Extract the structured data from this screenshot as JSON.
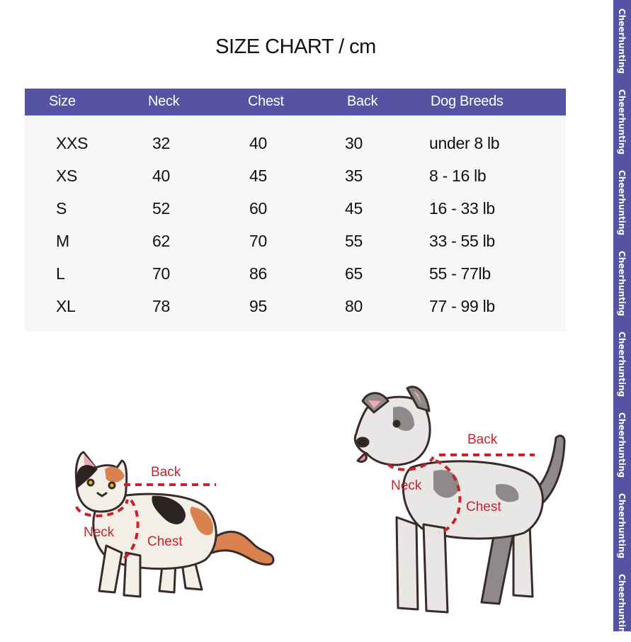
{
  "title": "SIZE CHART / cm",
  "table": {
    "headers": [
      "Size",
      "Neck",
      "Chest",
      "Back",
      "Dog Breeds"
    ],
    "rows": [
      [
        "XXS",
        "32",
        "40",
        "30",
        "under 8 lb"
      ],
      [
        "XS",
        "40",
        "45",
        "35",
        "8 - 16 lb"
      ],
      [
        "S",
        "52",
        "60",
        "45",
        "16 - 33 lb"
      ],
      [
        "M",
        "62",
        "70",
        "55",
        "33 - 55 lb"
      ],
      [
        "L",
        "70",
        "86",
        "65",
        "55 - 77lb"
      ],
      [
        "XL",
        "78",
        "95",
        "80",
        "77 - 99 lb"
      ]
    ]
  },
  "cat_labels": {
    "back": "Back",
    "neck": "Neck",
    "chest": "Chest"
  },
  "dog_labels": {
    "back": "Back",
    "neck": "Neck",
    "chest": "Chest"
  },
  "watermark": [
    "Cheerhunting",
    "Cheerhunting",
    "Cheerhunting",
    "Cheerhunting",
    "Cheerhunting",
    "Cheerhunting",
    "Cheerhunting",
    "Cheerhunting"
  ],
  "colors": {
    "header_bg": "#5553a3",
    "table_bg": "#f7f7f8",
    "measure_line": "#c8232c"
  }
}
